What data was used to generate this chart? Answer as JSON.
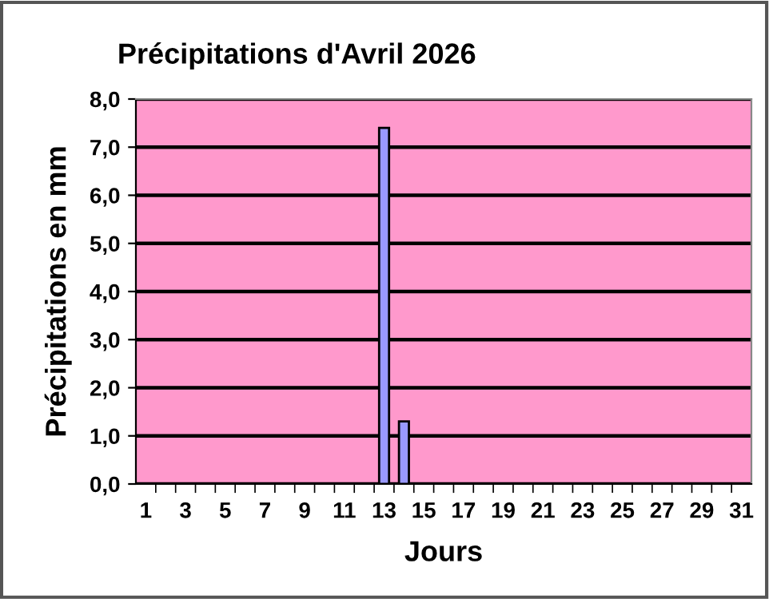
{
  "chart_data": {
    "type": "bar",
    "title": "Précipitations d'Avril 2026",
    "xlabel": "Jours",
    "ylabel": "Précipitations en mm",
    "categories": [
      "1",
      null,
      "3",
      null,
      "5",
      null,
      "7",
      null,
      "9",
      null,
      "11",
      null,
      "13",
      null,
      "15",
      null,
      "17",
      null,
      "19",
      null,
      "21",
      null,
      "23",
      null,
      "25",
      null,
      "27",
      null,
      "29",
      null,
      "31"
    ],
    "values": [
      0,
      0,
      0,
      0,
      0,
      0,
      0,
      0,
      0,
      0,
      0,
      0,
      7.4,
      1.3,
      0,
      0,
      0,
      0,
      0,
      0,
      0,
      0,
      0,
      0,
      0,
      0,
      0,
      0,
      0,
      0,
      null
    ],
    "color": "#9999ff",
    "ylim": [
      0,
      8
    ],
    "yticks": [
      {
        "value": 0,
        "label": "0,0"
      },
      {
        "value": 1,
        "label": "1,0"
      },
      {
        "value": 2,
        "label": "2,0"
      },
      {
        "value": 3,
        "label": "3,0"
      },
      {
        "value": 4,
        "label": "4,0"
      },
      {
        "value": 5,
        "label": "5,0"
      },
      {
        "value": 6,
        "label": "6,0"
      },
      {
        "value": 7,
        "label": "7,0"
      },
      {
        "value": 8,
        "label": "8,0"
      }
    ],
    "grid": "y",
    "legend": false
  }
}
